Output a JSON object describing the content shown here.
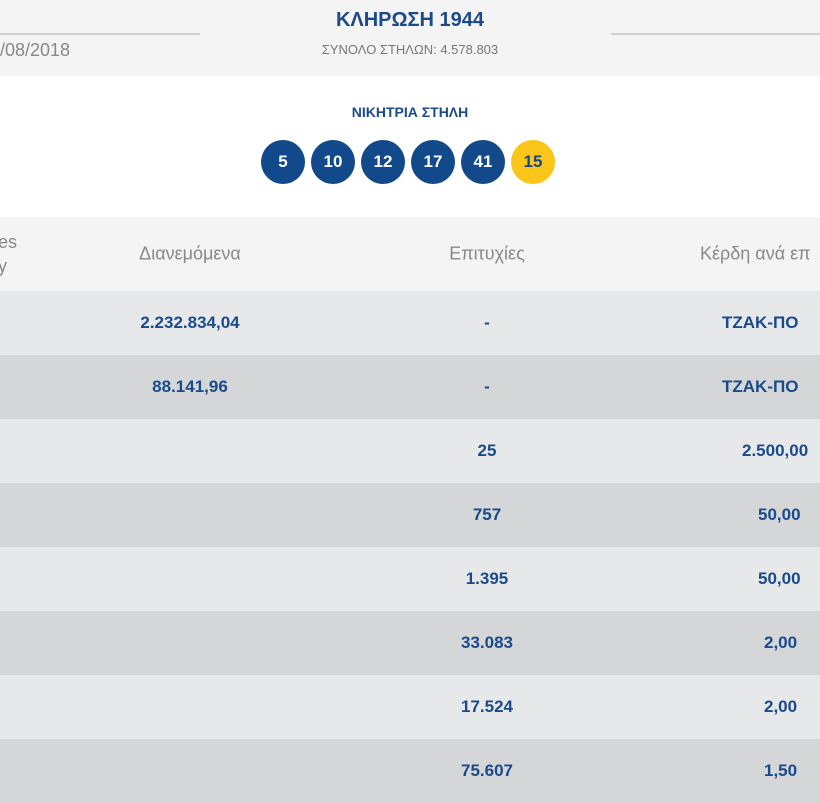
{
  "header": {
    "title": "ΚΛΗΡΩΣΗ 1944",
    "total_columns": "ΣΥΝΟΛΟ ΣΤΗΛΩΝ: 4.578.803",
    "date": "/08/2018"
  },
  "winning": {
    "label": "ΝΙΚΗΤΡΙΑ ΣΤΗΛΗ",
    "numbers": [
      "5",
      "10",
      "12",
      "17",
      "41"
    ],
    "joker": "15"
  },
  "table": {
    "headers": {
      "col1_line1": "es",
      "col1_line2": "y",
      "distributed": "Διανεμόμενα",
      "winners": "Επιτυχίες",
      "prize": "Κέρδη ανά επ"
    },
    "rows": [
      {
        "distributed": "2.232.834,04",
        "winners": "-",
        "prize": "ΤΖΑΚ-ΠΟ"
      },
      {
        "distributed": "88.141,96",
        "winners": "-",
        "prize": "ΤΖΑΚ-ΠΟ"
      },
      {
        "distributed": "",
        "winners": "25",
        "prize": "2.500,00"
      },
      {
        "distributed": "",
        "winners": "757",
        "prize": "50,00"
      },
      {
        "distributed": "",
        "winners": "1.395",
        "prize": "50,00"
      },
      {
        "distributed": "",
        "winners": "33.083",
        "prize": "2,00"
      },
      {
        "distributed": "",
        "winners": "17.524",
        "prize": "2,00"
      },
      {
        "distributed": "",
        "winners": "75.607",
        "prize": "1,50"
      }
    ]
  }
}
